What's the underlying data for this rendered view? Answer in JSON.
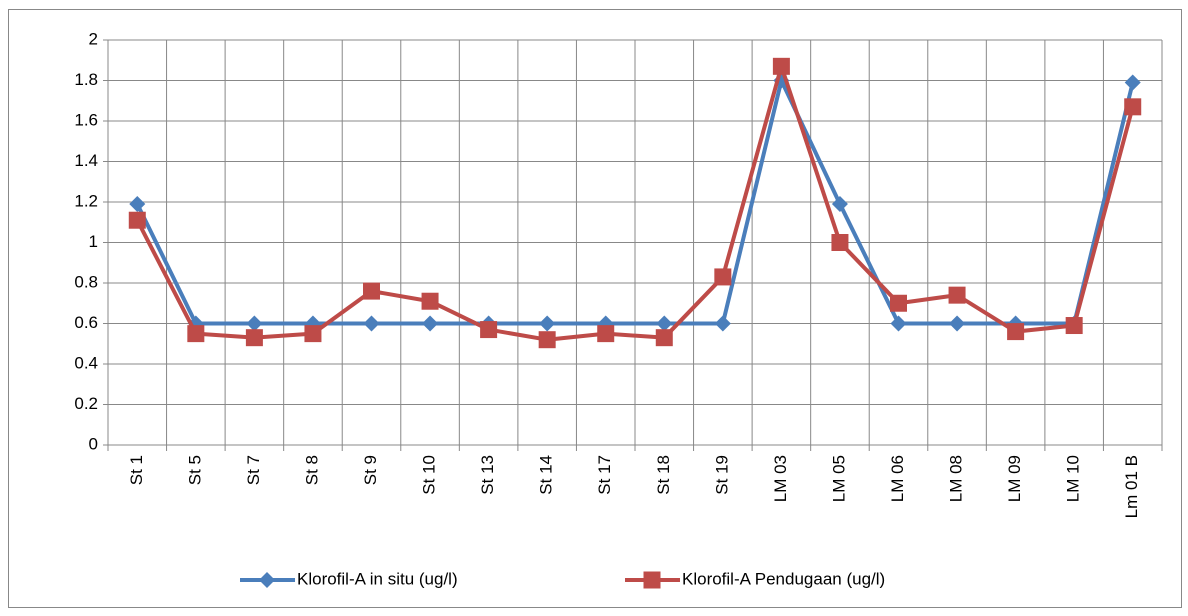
{
  "chart_data": {
    "type": "line",
    "categories": [
      "St 1",
      "St 5",
      "St 7",
      "St 8",
      "St 9",
      "St 10",
      "St 13",
      "St 14",
      "St 17",
      "St 18",
      "St 19",
      "LM 03",
      "LM 05",
      "LM 06",
      "LM 08",
      "LM 09",
      "LM 10",
      "Lm 01 B"
    ],
    "series": [
      {
        "name": "Klorofil-A in situ (ug/l)",
        "color": "#4a7ebb",
        "marker": "diamond",
        "values": [
          1.19,
          0.6,
          0.6,
          0.6,
          0.6,
          0.6,
          0.6,
          0.6,
          0.6,
          0.6,
          0.6,
          1.8,
          1.19,
          0.6,
          0.6,
          0.6,
          0.6,
          1.79
        ]
      },
      {
        "name": "Klorofil-A Pendugaan (ug/l)",
        "color": "#be4b48",
        "marker": "square",
        "values": [
          1.11,
          0.55,
          0.53,
          0.55,
          0.76,
          0.71,
          0.57,
          0.52,
          0.55,
          0.53,
          0.83,
          1.87,
          1.0,
          0.7,
          0.74,
          0.56,
          0.59,
          1.67
        ]
      }
    ],
    "ylim": [
      0,
      2
    ],
    "yticks": [
      0,
      0.2,
      0.4,
      0.6,
      0.8,
      1,
      1.2,
      1.4,
      1.6,
      1.8,
      2
    ],
    "grid": true,
    "legend": "bottom"
  }
}
